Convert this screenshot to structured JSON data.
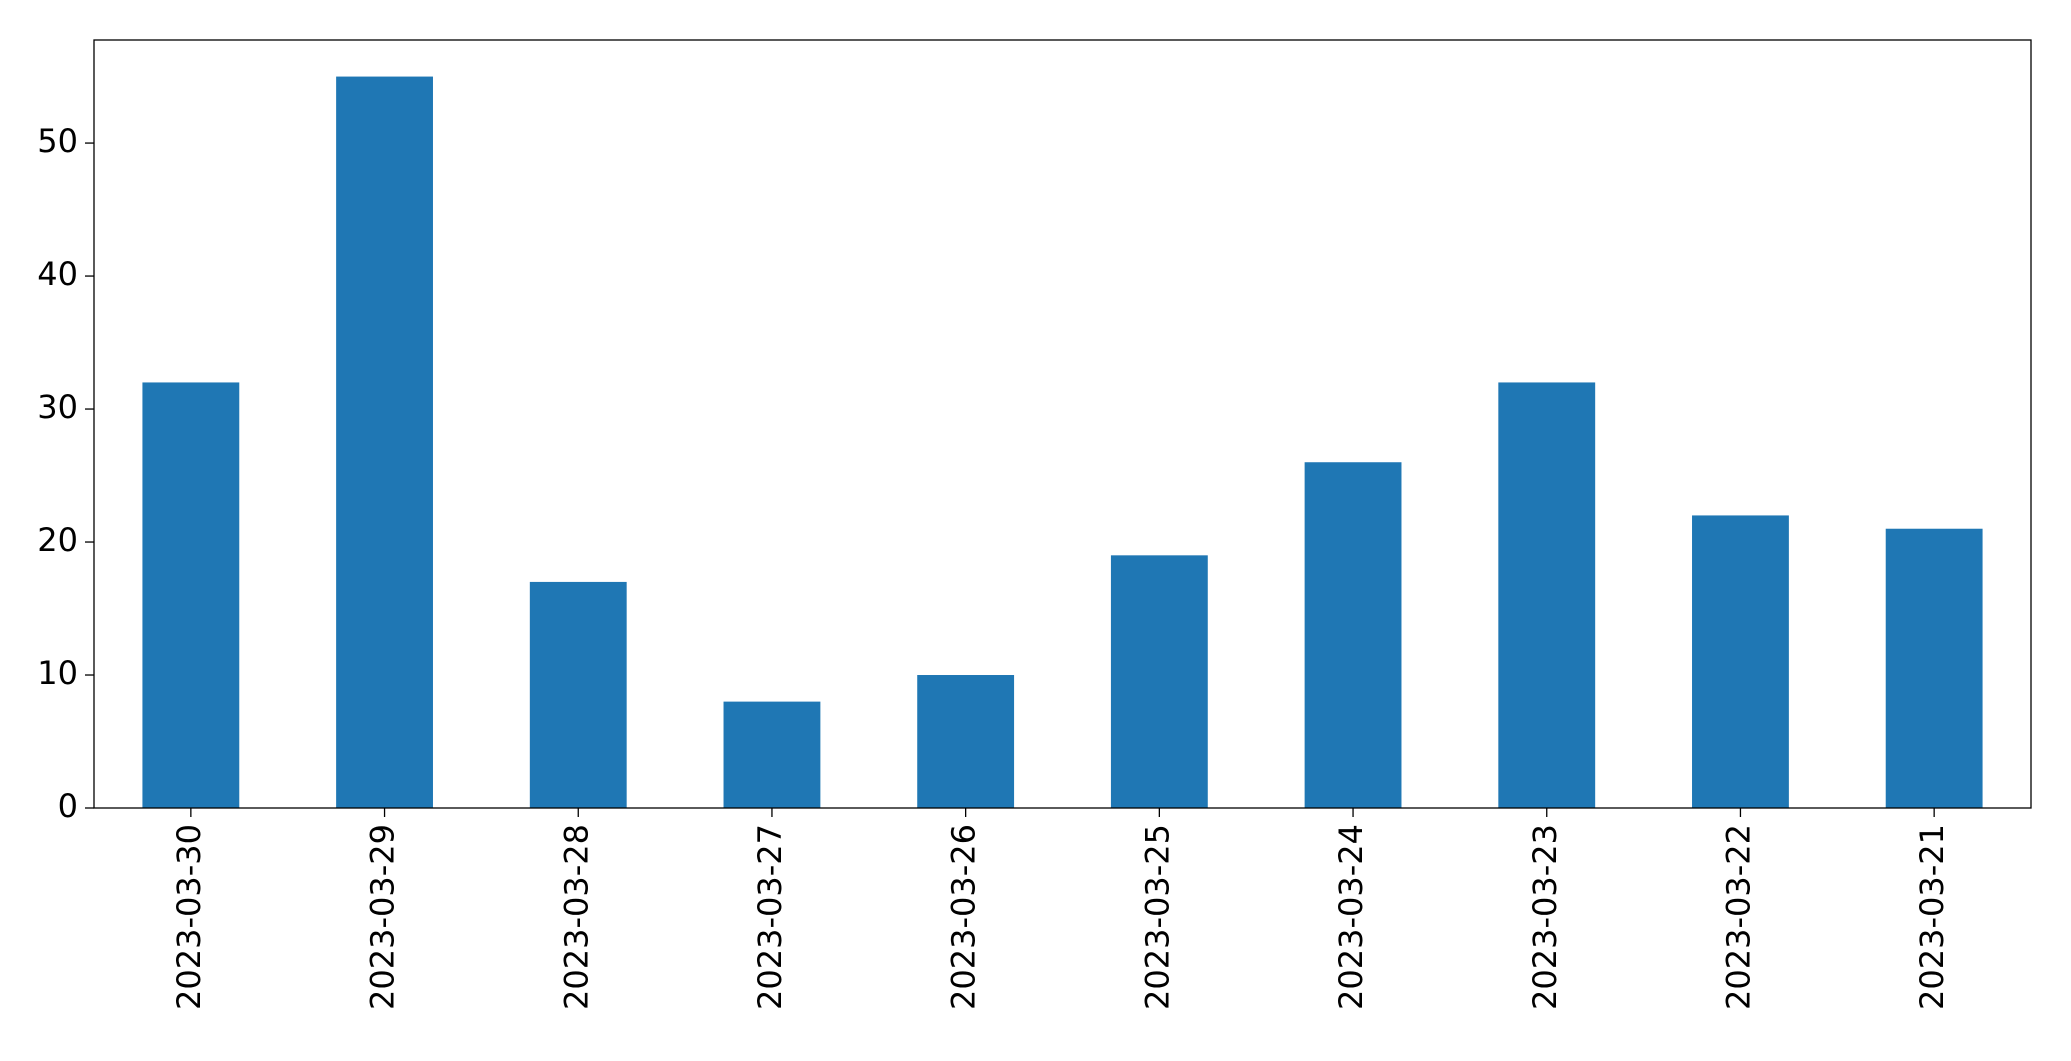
{
  "chart_data": {
    "type": "bar",
    "categories": [
      "2023-03-30",
      "2023-03-29",
      "2023-03-28",
      "2023-03-27",
      "2023-03-26",
      "2023-03-25",
      "2023-03-24",
      "2023-03-23",
      "2023-03-22",
      "2023-03-21"
    ],
    "values": [
      32,
      55,
      17,
      8,
      10,
      19,
      26,
      32,
      22,
      21
    ],
    "color": "#1f77b4",
    "ylim": [
      0,
      57.75
    ],
    "yticks": [
      0,
      10,
      20,
      30,
      40,
      50
    ],
    "grid": false
  }
}
